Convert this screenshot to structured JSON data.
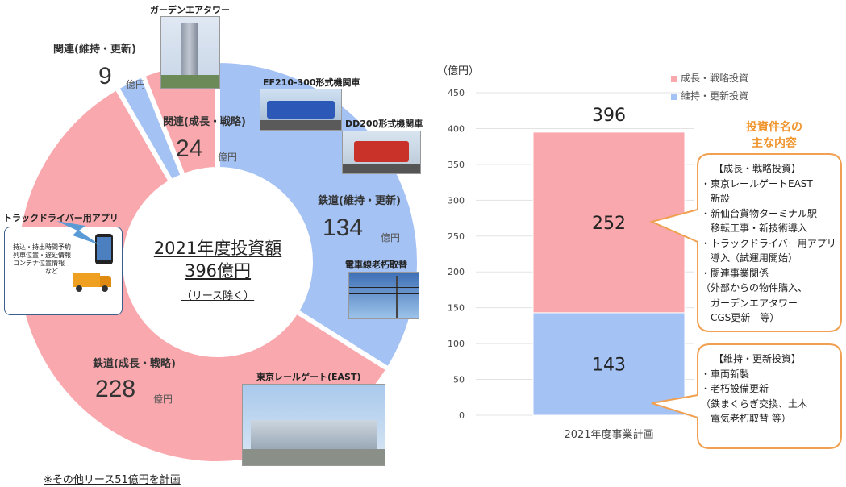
{
  "donut": {
    "center_title": "2021年度投資額",
    "center_amount": "396億円",
    "center_note": "（リース除く）",
    "segments": [
      {
        "label": "鉄道(維持・更新)",
        "value": 134,
        "unit": "億円",
        "color": "#a4c2f4"
      },
      {
        "label": "鉄道(成長・戦略)",
        "value": 228,
        "unit": "億円",
        "color": "#f9a9ae"
      },
      {
        "label": "関連(維持・更新)",
        "value": 9,
        "unit": "億円",
        "color": "#a4c2f4"
      },
      {
        "label": "関連(成長・戦略)",
        "value": 24,
        "unit": "億円",
        "color": "#f9a9ae"
      }
    ],
    "footnote": "※その他リース51億円を計画"
  },
  "photos": {
    "garden_air_tower": "ガーデンエアタワー",
    "ef210": "EF210-300形式機関車",
    "dd200": "DD200形式機関車",
    "catenary": "電車線老朽取替",
    "tokyo_rail_gate": "東京レールゲート(EAST)",
    "truck_app": "トラックドライバー用アプリ"
  },
  "app_box": {
    "lines": [
      "持込・持出時間予約",
      "列車位置・遅延情報",
      "コンテナ位置情報",
      "など"
    ]
  },
  "chart_data": {
    "type": "bar",
    "stacked": true,
    "ylabel": "（億円）",
    "ylim": [
      0,
      450
    ],
    "yticks": [
      0,
      50,
      100,
      150,
      200,
      250,
      300,
      350,
      400,
      450
    ],
    "categories": [
      "2021年度事業計画"
    ],
    "series": [
      {
        "name": "維持・更新投資",
        "values": [
          143
        ],
        "color": "#a4c2f4"
      },
      {
        "name": "成長・戦略投資",
        "values": [
          252
        ],
        "color": "#f9a9ae"
      }
    ],
    "total_label": "396",
    "legend_position": "top-right",
    "grid": true
  },
  "callouts": {
    "heading": [
      "投資件名の",
      "主な内容"
    ],
    "growth": [
      "【成長・戦略投資】",
      "・東京レールゲートEAST",
      "　新設",
      "・新仙台貨物ターミナル駅",
      "　移転工事・新技術導入",
      "・トラックドライバー用アプリ",
      "　導入（試運用開始）",
      "・関連事業関係",
      "（外部からの物件購入、",
      "　ガーデンエアタワー",
      "　CGS更新　等）"
    ],
    "maint": [
      "【維持・更新投資】",
      "・車両新製",
      "・老朽設備更新",
      "（鉄まくらぎ交換、土木",
      "　電気老朽取替 等）"
    ]
  }
}
